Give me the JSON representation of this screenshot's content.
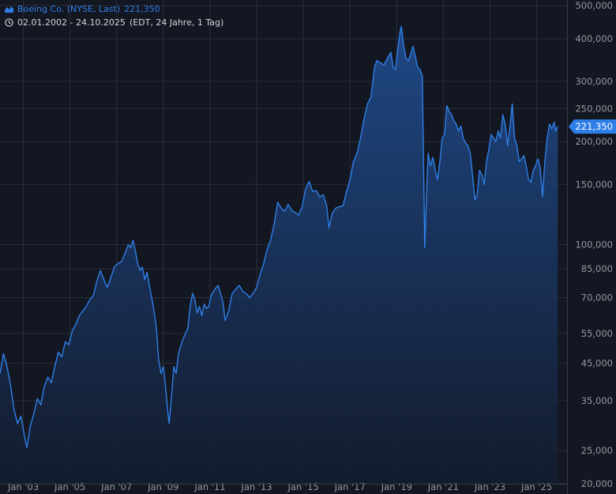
{
  "header": {
    "series_label": "Boeing Co. (NYSE, Last)",
    "last_value": "221,350",
    "date_range": "02.01.2002 - 24.10.2025",
    "period_info": "(EDT, 24 Jahre, 1 Tag)"
  },
  "last_price_label": "221,350",
  "colors": {
    "background": "#131722",
    "grid": "#2a2e39",
    "line": "#2f7fe8",
    "area_top": "#1c3f75",
    "text": "#d1d4dc",
    "axis_text": "#9598a1"
  },
  "chart_data": {
    "type": "area",
    "title": "Boeing Co. (NYSE, Last)",
    "y_scale": "log",
    "ylim": [
      20000,
      500000
    ],
    "xlim": [
      2002.0,
      2026.3
    ],
    "grid": true,
    "y_ticks": [
      {
        "value": 500000,
        "label": "500,000"
      },
      {
        "value": 400000,
        "label": "400,000"
      },
      {
        "value": 300000,
        "label": "300,000"
      },
      {
        "value": 250000,
        "label": "250,000"
      },
      {
        "value": 200000,
        "label": "200,000"
      },
      {
        "value": 150000,
        "label": "150,000"
      },
      {
        "value": 100000,
        "label": "100,000"
      },
      {
        "value": 85000,
        "label": "85,000"
      },
      {
        "value": 70000,
        "label": "70,000"
      },
      {
        "value": 55000,
        "label": "55,000"
      },
      {
        "value": 45000,
        "label": "45,000"
      },
      {
        "value": 35000,
        "label": "35,000"
      },
      {
        "value": 25000,
        "label": "25,000"
      },
      {
        "value": 20000,
        "label": "20,000"
      }
    ],
    "x_ticks": [
      {
        "value": 2003.0,
        "label": "Jan '03"
      },
      {
        "value": 2005.0,
        "label": "Jan '05"
      },
      {
        "value": 2007.0,
        "label": "Jan '07"
      },
      {
        "value": 2009.0,
        "label": "Jan '09"
      },
      {
        "value": 2011.0,
        "label": "Jan '11"
      },
      {
        "value": 2013.0,
        "label": "Jan '13"
      },
      {
        "value": 2015.0,
        "label": "Jan '15"
      },
      {
        "value": 2017.0,
        "label": "Jan '17"
      },
      {
        "value": 2019.0,
        "label": "Jan '19"
      },
      {
        "value": 2021.0,
        "label": "Jan '21"
      },
      {
        "value": 2023.0,
        "label": "Jan '23"
      },
      {
        "value": 2025.0,
        "label": "Jan '25"
      }
    ],
    "series": [
      {
        "points": [
          [
            2002.0,
            42000
          ],
          [
            2002.15,
            48000
          ],
          [
            2002.3,
            44000
          ],
          [
            2002.45,
            39000
          ],
          [
            2002.6,
            33000
          ],
          [
            2002.75,
            30000
          ],
          [
            2002.9,
            31500
          ],
          [
            2003.05,
            27500
          ],
          [
            2003.15,
            25500
          ],
          [
            2003.3,
            29500
          ],
          [
            2003.45,
            32000
          ],
          [
            2003.6,
            35500
          ],
          [
            2003.75,
            34000
          ],
          [
            2003.9,
            38500
          ],
          [
            2004.05,
            41000
          ],
          [
            2004.2,
            39500
          ],
          [
            2004.35,
            44000
          ],
          [
            2004.5,
            48500
          ],
          [
            2004.65,
            47000
          ],
          [
            2004.8,
            52000
          ],
          [
            2004.95,
            51000
          ],
          [
            2005.1,
            56000
          ],
          [
            2005.25,
            58500
          ],
          [
            2005.4,
            62000
          ],
          [
            2005.55,
            64000
          ],
          [
            2005.7,
            66000
          ],
          [
            2005.85,
            69000
          ],
          [
            2006.0,
            71000
          ],
          [
            2006.15,
            78000
          ],
          [
            2006.3,
            84000
          ],
          [
            2006.45,
            79000
          ],
          [
            2006.6,
            75000
          ],
          [
            2006.75,
            80000
          ],
          [
            2006.9,
            86000
          ],
          [
            2007.05,
            88000
          ],
          [
            2007.2,
            89000
          ],
          [
            2007.35,
            94000
          ],
          [
            2007.5,
            100000
          ],
          [
            2007.6,
            98000
          ],
          [
            2007.7,
            103000
          ],
          [
            2007.8,
            96000
          ],
          [
            2007.9,
            88000
          ],
          [
            2008.0,
            84000
          ],
          [
            2008.1,
            86000
          ],
          [
            2008.2,
            79000
          ],
          [
            2008.3,
            83000
          ],
          [
            2008.4,
            76000
          ],
          [
            2008.5,
            70000
          ],
          [
            2008.6,
            64000
          ],
          [
            2008.7,
            57000
          ],
          [
            2008.8,
            46000
          ],
          [
            2008.9,
            42000
          ],
          [
            2009.0,
            44000
          ],
          [
            2009.1,
            38000
          ],
          [
            2009.18,
            33000
          ],
          [
            2009.25,
            30000
          ],
          [
            2009.35,
            36000
          ],
          [
            2009.45,
            44000
          ],
          [
            2009.55,
            42000
          ],
          [
            2009.65,
            48000
          ],
          [
            2009.8,
            52000
          ],
          [
            2009.95,
            55000
          ],
          [
            2010.05,
            57000
          ],
          [
            2010.15,
            66000
          ],
          [
            2010.25,
            72000
          ],
          [
            2010.35,
            69000
          ],
          [
            2010.45,
            63000
          ],
          [
            2010.55,
            66000
          ],
          [
            2010.65,
            62000
          ],
          [
            2010.75,
            67000
          ],
          [
            2010.85,
            65000
          ],
          [
            2010.95,
            66000
          ],
          [
            2011.05,
            71000
          ],
          [
            2011.2,
            74000
          ],
          [
            2011.35,
            76000
          ],
          [
            2011.45,
            72000
          ],
          [
            2011.55,
            68000
          ],
          [
            2011.65,
            60000
          ],
          [
            2011.8,
            64000
          ],
          [
            2011.95,
            72000
          ],
          [
            2012.1,
            74000
          ],
          [
            2012.25,
            76000
          ],
          [
            2012.4,
            73000
          ],
          [
            2012.55,
            72000
          ],
          [
            2012.7,
            70000
          ],
          [
            2012.85,
            72000
          ],
          [
            2013.0,
            75000
          ],
          [
            2013.15,
            82000
          ],
          [
            2013.3,
            88000
          ],
          [
            2013.45,
            97000
          ],
          [
            2013.6,
            103000
          ],
          [
            2013.75,
            115000
          ],
          [
            2013.9,
            133000
          ],
          [
            2014.05,
            128000
          ],
          [
            2014.2,
            125000
          ],
          [
            2014.35,
            131000
          ],
          [
            2014.5,
            126000
          ],
          [
            2014.65,
            124000
          ],
          [
            2014.8,
            122000
          ],
          [
            2014.95,
            129000
          ],
          [
            2015.1,
            146000
          ],
          [
            2015.25,
            153000
          ],
          [
            2015.4,
            143000
          ],
          [
            2015.55,
            144000
          ],
          [
            2015.7,
            138000
          ],
          [
            2015.85,
            140000
          ],
          [
            2016.0,
            130000
          ],
          [
            2016.1,
            112000
          ],
          [
            2016.25,
            124000
          ],
          [
            2016.4,
            128000
          ],
          [
            2016.55,
            129000
          ],
          [
            2016.7,
            130000
          ],
          [
            2016.85,
            143000
          ],
          [
            2017.0,
            155000
          ],
          [
            2017.15,
            175000
          ],
          [
            2017.3,
            185000
          ],
          [
            2017.45,
            205000
          ],
          [
            2017.6,
            233000
          ],
          [
            2017.75,
            258000
          ],
          [
            2017.9,
            270000
          ],
          [
            2018.05,
            330000
          ],
          [
            2018.15,
            345000
          ],
          [
            2018.3,
            340000
          ],
          [
            2018.45,
            335000
          ],
          [
            2018.6,
            350000
          ],
          [
            2018.75,
            365000
          ],
          [
            2018.85,
            330000
          ],
          [
            2018.95,
            325000
          ],
          [
            2019.05,
            375000
          ],
          [
            2019.15,
            420000
          ],
          [
            2019.2,
            435000
          ],
          [
            2019.3,
            380000
          ],
          [
            2019.4,
            350000
          ],
          [
            2019.5,
            345000
          ],
          [
            2019.6,
            360000
          ],
          [
            2019.7,
            380000
          ],
          [
            2019.8,
            355000
          ],
          [
            2019.9,
            330000
          ],
          [
            2020.0,
            325000
          ],
          [
            2020.1,
            310000
          ],
          [
            2020.15,
            175000
          ],
          [
            2020.2,
            98000
          ],
          [
            2020.28,
            140000
          ],
          [
            2020.35,
            185000
          ],
          [
            2020.45,
            170000
          ],
          [
            2020.55,
            180000
          ],
          [
            2020.65,
            165000
          ],
          [
            2020.75,
            155000
          ],
          [
            2020.85,
            175000
          ],
          [
            2020.95,
            205000
          ],
          [
            2021.05,
            210000
          ],
          [
            2021.15,
            255000
          ],
          [
            2021.25,
            245000
          ],
          [
            2021.35,
            240000
          ],
          [
            2021.45,
            230000
          ],
          [
            2021.55,
            225000
          ],
          [
            2021.65,
            215000
          ],
          [
            2021.75,
            222000
          ],
          [
            2021.85,
            205000
          ],
          [
            2021.95,
            198000
          ],
          [
            2022.05,
            195000
          ],
          [
            2022.15,
            185000
          ],
          [
            2022.25,
            160000
          ],
          [
            2022.35,
            135000
          ],
          [
            2022.45,
            140000
          ],
          [
            2022.55,
            165000
          ],
          [
            2022.65,
            160000
          ],
          [
            2022.75,
            150000
          ],
          [
            2022.85,
            175000
          ],
          [
            2022.95,
            190000
          ],
          [
            2023.05,
            210000
          ],
          [
            2023.15,
            205000
          ],
          [
            2023.25,
            200000
          ],
          [
            2023.35,
            215000
          ],
          [
            2023.45,
            205000
          ],
          [
            2023.55,
            240000
          ],
          [
            2023.65,
            225000
          ],
          [
            2023.75,
            195000
          ],
          [
            2023.85,
            220000
          ],
          [
            2023.95,
            258000
          ],
          [
            2024.05,
            205000
          ],
          [
            2024.15,
            195000
          ],
          [
            2024.25,
            175000
          ],
          [
            2024.35,
            178000
          ],
          [
            2024.45,
            182000
          ],
          [
            2024.55,
            170000
          ],
          [
            2024.65,
            155000
          ],
          [
            2024.75,
            152000
          ],
          [
            2024.85,
            165000
          ],
          [
            2024.95,
            170000
          ],
          [
            2025.05,
            178000
          ],
          [
            2025.15,
            168000
          ],
          [
            2025.25,
            138000
          ],
          [
            2025.35,
            175000
          ],
          [
            2025.45,
            205000
          ],
          [
            2025.55,
            225000
          ],
          [
            2025.65,
            218000
          ],
          [
            2025.75,
            228000
          ],
          [
            2025.82,
            215000
          ],
          [
            2025.9,
            221350
          ]
        ]
      }
    ]
  }
}
